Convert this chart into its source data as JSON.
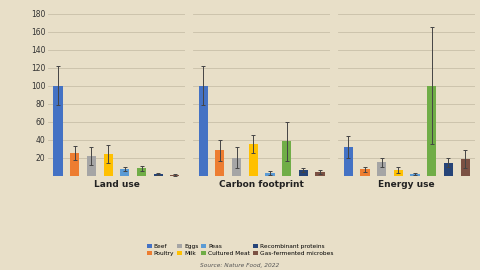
{
  "background_color": "#e8dfc8",
  "grid_color": "#c8bfa8",
  "source_text": "Source: Nature Food, 2022",
  "groups": [
    "Land use",
    "Carbon footprint",
    "Energy use"
  ],
  "categories": [
    "Beef",
    "Poultry",
    "Eggs",
    "Milk",
    "Peas",
    "Cultured Meat",
    "Recombinant proteins",
    "Gas-fermented microbes"
  ],
  "colors": [
    "#4472c4",
    "#ed7d31",
    "#a5a5a5",
    "#ffc000",
    "#5b9bd5",
    "#70ad47",
    "#264478",
    "#7b5143"
  ],
  "values": [
    [
      100,
      25,
      22,
      24,
      7,
      8,
      2,
      1
    ],
    [
      100,
      28,
      20,
      35,
      3,
      38,
      6,
      4
    ],
    [
      32,
      7,
      15,
      6,
      2,
      100,
      14,
      18
    ]
  ],
  "errors": [
    [
      22,
      8,
      10,
      10,
      2,
      3,
      1,
      1
    ],
    [
      22,
      12,
      12,
      10,
      2,
      22,
      2,
      2
    ],
    [
      12,
      3,
      5,
      3,
      1,
      65,
      5,
      10
    ]
  ],
  "ylim": [
    0,
    180
  ],
  "yticks": [
    0,
    20,
    40,
    60,
    80,
    100,
    120,
    140,
    160,
    180
  ]
}
